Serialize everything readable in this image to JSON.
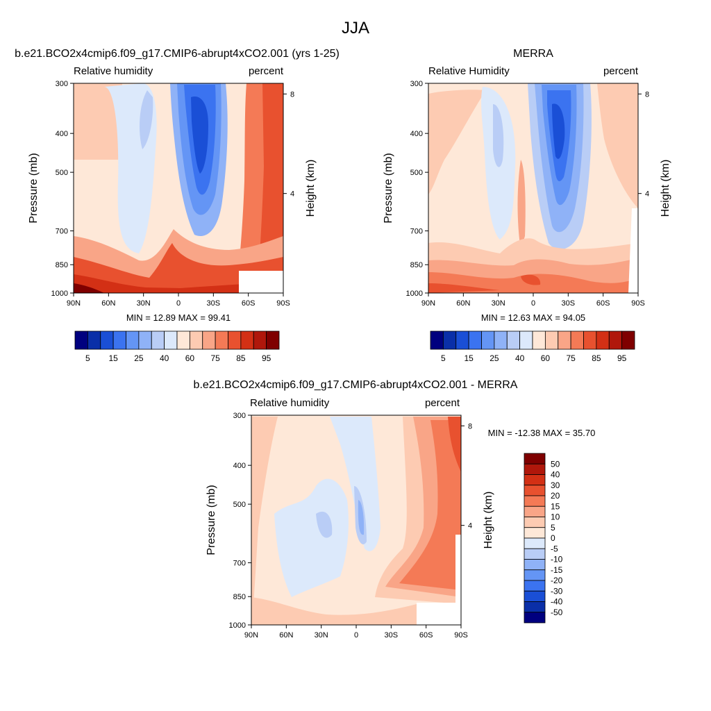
{
  "figure": {
    "season_title": "JJA"
  },
  "chart_data": [
    {
      "type": "heatmap",
      "id": "model",
      "title": "b.e21.BCO2x4cmip6.f09_g17.CMIP6-abrupt4xCO2.001 (yrs 1-25)",
      "left_label": "Relative humidity",
      "right_label": "percent",
      "ylabel": "Pressure (mb)",
      "ylabel_right": "Height (km)",
      "x_ticks": [
        "90N",
        "60N",
        "30N",
        "0",
        "30S",
        "60S",
        "90S"
      ],
      "x_range": [
        90,
        -90
      ],
      "y_ticks": [
        300,
        400,
        500,
        700,
        850,
        1000
      ],
      "y_range": [
        300,
        1000
      ],
      "y_scale": "log",
      "height_ticks": [
        8,
        4
      ],
      "stats_text": "MIN =  12.89  MAX =  99.41",
      "min": 12.89,
      "max": 99.41,
      "colorbar": {
        "orientation": "horizontal",
        "levels": [
          5,
          10,
          15,
          20,
          25,
          30,
          40,
          50,
          60,
          65,
          75,
          80,
          85,
          90,
          95
        ],
        "tick_labels": [
          "5",
          "15",
          "25",
          "40",
          "60",
          "75",
          "85",
          "95"
        ],
        "colors": [
          "#00007f",
          "#0a2fa8",
          "#1a4fd6",
          "#3b73f0",
          "#6495f5",
          "#8fb2f7",
          "#b9cdf6",
          "#dce9fb",
          "#fee8d8",
          "#fdcbb2",
          "#f9a587",
          "#f47a56",
          "#e8512f",
          "#d33015",
          "#b0170b",
          "#7f0000"
        ]
      }
    },
    {
      "type": "heatmap",
      "id": "obs",
      "title": "MERRA",
      "left_label": "Relative Humidity",
      "right_label": "percent",
      "ylabel": "Pressure (mb)",
      "ylabel_right": "Height (km)",
      "x_ticks": [
        "90N",
        "60N",
        "30N",
        "0",
        "30S",
        "60S",
        "90S"
      ],
      "x_range": [
        90,
        -90
      ],
      "y_ticks": [
        300,
        400,
        500,
        700,
        850,
        1000
      ],
      "y_range": [
        300,
        1000
      ],
      "y_scale": "log",
      "height_ticks": [
        8,
        4
      ],
      "stats_text": "MIN =  12.63  MAX =  94.05",
      "min": 12.63,
      "max": 94.05,
      "colorbar": {
        "orientation": "horizontal",
        "levels": [
          5,
          10,
          15,
          20,
          25,
          30,
          40,
          50,
          60,
          65,
          75,
          80,
          85,
          90,
          95
        ],
        "tick_labels": [
          "5",
          "15",
          "25",
          "40",
          "60",
          "75",
          "85",
          "95"
        ],
        "colors": [
          "#00007f",
          "#0a2fa8",
          "#1a4fd6",
          "#3b73f0",
          "#6495f5",
          "#8fb2f7",
          "#b9cdf6",
          "#dce9fb",
          "#fee8d8",
          "#fdcbb2",
          "#f9a587",
          "#f47a56",
          "#e8512f",
          "#d33015",
          "#b0170b",
          "#7f0000"
        ]
      }
    },
    {
      "type": "heatmap",
      "id": "diff",
      "title": "b.e21.BCO2x4cmip6.f09_g17.CMIP6-abrupt4xCO2.001 - MERRA",
      "left_label": "Relative humidity",
      "right_label": "percent",
      "ylabel": "Pressure (mb)",
      "ylabel_right": "Height (km)",
      "x_ticks": [
        "90N",
        "60N",
        "30N",
        "0",
        "30S",
        "60S",
        "90S"
      ],
      "x_range": [
        90,
        -90
      ],
      "y_ticks": [
        300,
        400,
        500,
        700,
        850,
        1000
      ],
      "y_range": [
        300,
        1000
      ],
      "y_scale": "log",
      "height_ticks": [
        8,
        4
      ],
      "stats_text": "MIN = -12.38  MAX =  35.70",
      "min": -12.38,
      "max": 35.7,
      "colorbar": {
        "orientation": "vertical",
        "levels": [
          -50,
          -40,
          -30,
          -20,
          -15,
          -10,
          -5,
          0,
          5,
          10,
          15,
          20,
          30,
          40,
          50
        ],
        "tick_labels": [
          "50",
          "40",
          "30",
          "20",
          "15",
          "10",
          "5",
          "0",
          "-5",
          "-10",
          "-15",
          "-20",
          "-30",
          "-40",
          "-50"
        ],
        "colors": [
          "#00007f",
          "#0a2fa8",
          "#1a4fd6",
          "#3b73f0",
          "#6495f5",
          "#8fb2f7",
          "#b9cdf6",
          "#dce9fb",
          "#fee8d8",
          "#fdcbb2",
          "#f9a587",
          "#f47a56",
          "#e8512f",
          "#d33015",
          "#b0170b",
          "#7f0000"
        ]
      }
    }
  ]
}
